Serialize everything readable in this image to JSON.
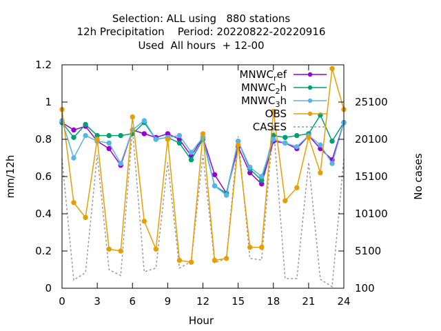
{
  "chart_data": {
    "type": "line",
    "title_lines": [
      "Selection: ALL using   880 stations",
      "12h Precipitation    Period: 20220822-20220916",
      "Used  All hours  + 12-00"
    ],
    "xlabel": "Hour",
    "ylabel": "mm/12h",
    "y2label": "No cases",
    "xlim": [
      0,
      24
    ],
    "ylim": [
      0,
      1.2
    ],
    "y2lim": [
      100,
      30100
    ],
    "xticks": [
      0,
      3,
      6,
      9,
      12,
      15,
      18,
      21,
      24
    ],
    "yticks": [
      0,
      0.2,
      0.4,
      0.6,
      0.8,
      1,
      1.2
    ],
    "y2ticks": [
      100,
      5100,
      10100,
      15100,
      20100,
      25100
    ],
    "grid": false,
    "legend_position": "top-right",
    "x": [
      0,
      1,
      2,
      3,
      4,
      5,
      6,
      7,
      8,
      9,
      10,
      11,
      12,
      13,
      14,
      15,
      16,
      17,
      18,
      19,
      20,
      21,
      22,
      23,
      24
    ],
    "series": [
      {
        "name": "MNWC",
        "name_sub": "r",
        "name_rest": "ef",
        "color": "#9400d3",
        "line_style": "solid",
        "marker": "circle",
        "axis": "y",
        "values": [
          0.89,
          0.85,
          0.87,
          0.79,
          0.75,
          0.66,
          0.85,
          0.83,
          0.81,
          0.83,
          0.8,
          0.71,
          0.81,
          0.61,
          0.51,
          0.76,
          0.62,
          0.56,
          0.79,
          0.78,
          0.75,
          0.82,
          0.75,
          0.69,
          0.89
        ]
      },
      {
        "name": "MNWC",
        "name_sub": "2",
        "name_rest": "h",
        "color": "#009e73",
        "line_style": "solid",
        "marker": "circle",
        "axis": "y",
        "values": [
          0.89,
          0.81,
          0.88,
          0.82,
          0.82,
          0.82,
          0.83,
          0.89,
          0.8,
          0.81,
          0.78,
          0.69,
          0.8,
          0.55,
          0.51,
          0.79,
          0.64,
          0.58,
          0.82,
          0.81,
          0.82,
          0.83,
          0.93,
          0.79,
          0.89
        ]
      },
      {
        "name": "MNWC",
        "name_sub": "3",
        "name_rest": "h",
        "color": "#56b4e9",
        "line_style": "solid",
        "marker": "circle",
        "axis": "y",
        "values": [
          0.9,
          0.7,
          0.82,
          0.79,
          0.78,
          0.67,
          0.85,
          0.9,
          0.8,
          0.81,
          0.82,
          0.73,
          0.81,
          0.55,
          0.5,
          0.79,
          0.65,
          0.6,
          0.8,
          0.78,
          0.76,
          0.82,
          0.77,
          0.67,
          0.89
        ]
      },
      {
        "name": "OBS",
        "name_sub": "",
        "name_rest": "",
        "color": "#e69f00",
        "line_style": "solid",
        "marker": "circle",
        "axis": "y",
        "values": [
          0.96,
          0.46,
          0.38,
          0.8,
          0.21,
          0.2,
          0.92,
          0.36,
          0.21,
          0.8,
          0.15,
          0.14,
          0.83,
          0.15,
          0.16,
          0.77,
          0.22,
          0.22,
          0.95,
          0.47,
          0.54,
          0.81,
          0.62,
          1.18,
          0.96
        ]
      },
      {
        "name": "CASES",
        "name_sub": "",
        "name_rest": "",
        "color": "#999999",
        "line_style": "dashed",
        "marker": "none",
        "axis": "y2",
        "values": [
          17500,
          1200,
          2200,
          18000,
          2600,
          1800,
          21500,
          2300,
          2800,
          17000,
          2800,
          3700,
          18000,
          3500,
          4100,
          20500,
          4100,
          3900,
          22000,
          1400,
          1400,
          17000,
          1300,
          300,
          17500
        ]
      }
    ]
  }
}
